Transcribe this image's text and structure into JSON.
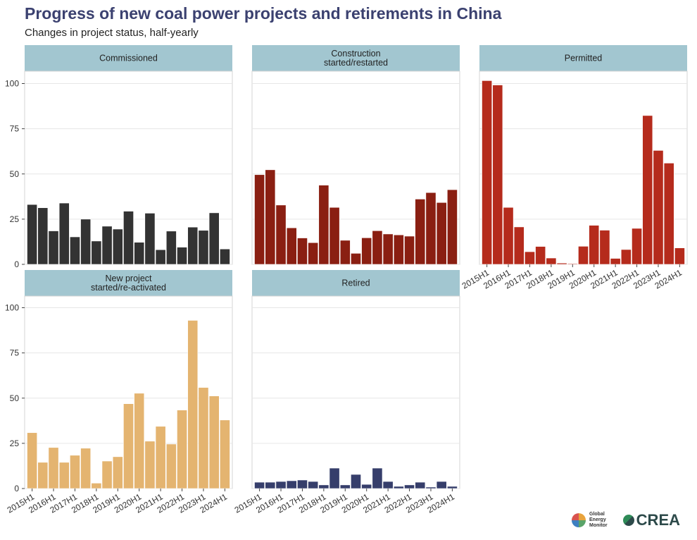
{
  "title": "Progress of new coal power projects and retirements in China",
  "subtitle": "Changes in project status, half-yearly",
  "logos": {
    "gem": [
      "Global",
      "Energy",
      "Monitor"
    ],
    "crea": "CREA"
  },
  "chart_data": {
    "type": "bar",
    "categories": [
      "2015H1",
      "2015H2",
      "2016H1",
      "2016H2",
      "2017H1",
      "2017H2",
      "2018H1",
      "2018H2",
      "2019H1",
      "2019H2",
      "2020H1",
      "2020H2",
      "2021H1",
      "2021H2",
      "2022H1",
      "2022H2",
      "2023H1",
      "2023H2",
      "2024H1"
    ],
    "x_tick_labels": [
      "2015H1",
      "2016H1",
      "2017H1",
      "2018H1",
      "2019H1",
      "2020H1",
      "2021H1",
      "2022H1",
      "2023H1",
      "2024H1"
    ],
    "y_ticks": [
      0,
      25,
      50,
      75,
      100
    ],
    "ylim": [
      0,
      105
    ],
    "grid": true,
    "series": [
      {
        "name": "Commissioned",
        "label_lines": [
          "Commissioned"
        ],
        "color": "#333333",
        "values": [
          33.1,
          31.3,
          18.5,
          33.9,
          15.2,
          25,
          12.9,
          21.1,
          19.5,
          29.4,
          12.2,
          28.3,
          8.1,
          18.4,
          9.5,
          20.6,
          18.8,
          28.5,
          8.5
        ]
      },
      {
        "name": "Construction started/restarted",
        "label_lines": [
          "Construction",
          "started/restarted"
        ],
        "color": "#8a1f12",
        "values": [
          49.6,
          52.3,
          32.8,
          20.2,
          14.6,
          12,
          43.8,
          31.5,
          13.3,
          6.1,
          14.7,
          18.6,
          16.8,
          16.3,
          15.6,
          36.1,
          39.7,
          34.2,
          41.3
        ]
      },
      {
        "name": "Permitted",
        "label_lines": [
          "Permitted"
        ],
        "color": "#b52b1c",
        "values": [
          101.6,
          99.2,
          31.5,
          20.7,
          7,
          9.9,
          3.5,
          0.7,
          0.4,
          10,
          21.6,
          18.9,
          3.3,
          8.2,
          19.9,
          82.3,
          63,
          56,
          9.1
        ]
      },
      {
        "name": "New project started/re-activated",
        "label_lines": [
          "New project",
          "started/re-activated"
        ],
        "color": "#e4b470",
        "values": [
          30.9,
          14.5,
          22.7,
          14.5,
          18.4,
          22.3,
          3,
          15.2,
          17.6,
          46.9,
          52.7,
          26.2,
          34.4,
          24.6,
          43.4,
          93,
          55.9,
          51.2,
          37.9
        ]
      },
      {
        "name": "Retired",
        "label_lines": [
          "Retired"
        ],
        "color": "#363e6b",
        "values": [
          3.5,
          3.5,
          3.9,
          4.3,
          4.7,
          3.9,
          2,
          11.3,
          2,
          7.8,
          2.3,
          11.3,
          3.9,
          1.2,
          2,
          3.5,
          0.8,
          3.9,
          1.2
        ]
      }
    ]
  }
}
